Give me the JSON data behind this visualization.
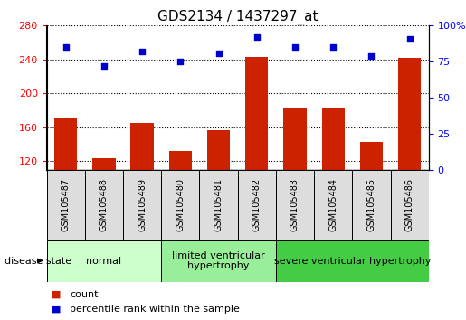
{
  "title": "GDS2134 / 1437297_at",
  "samples": [
    "GSM105487",
    "GSM105488",
    "GSM105489",
    "GSM105480",
    "GSM105481",
    "GSM105482",
    "GSM105483",
    "GSM105484",
    "GSM105485",
    "GSM105486"
  ],
  "counts": [
    172,
    124,
    165,
    132,
    157,
    243,
    183,
    182,
    143,
    242
  ],
  "percentiles": [
    85,
    72,
    82,
    75,
    81,
    92,
    85,
    85,
    79,
    91
  ],
  "ylim_left": [
    110,
    280
  ],
  "ylim_right": [
    0,
    100
  ],
  "yticks_left": [
    120,
    160,
    200,
    240,
    280
  ],
  "yticks_right": [
    0,
    25,
    50,
    75,
    100
  ],
  "bar_color": "#cc2200",
  "dot_color": "#0000cc",
  "bar_width": 0.6,
  "groups": [
    {
      "label": "normal",
      "start": 0,
      "end": 3,
      "color": "#ccffcc"
    },
    {
      "label": "limited ventricular\nhypertrophy",
      "start": 3,
      "end": 6,
      "color": "#99ee99"
    },
    {
      "label": "severe ventricular hypertrophy",
      "start": 6,
      "end": 10,
      "color": "#44cc44"
    }
  ],
  "disease_state_label": "disease state",
  "legend_count_label": "count",
  "legend_percentile_label": "percentile rank within the sample",
  "title_fontsize": 11,
  "tick_fontsize": 8,
  "sample_label_fontsize": 7,
  "group_label_fontsize": 8,
  "legend_fontsize": 8
}
